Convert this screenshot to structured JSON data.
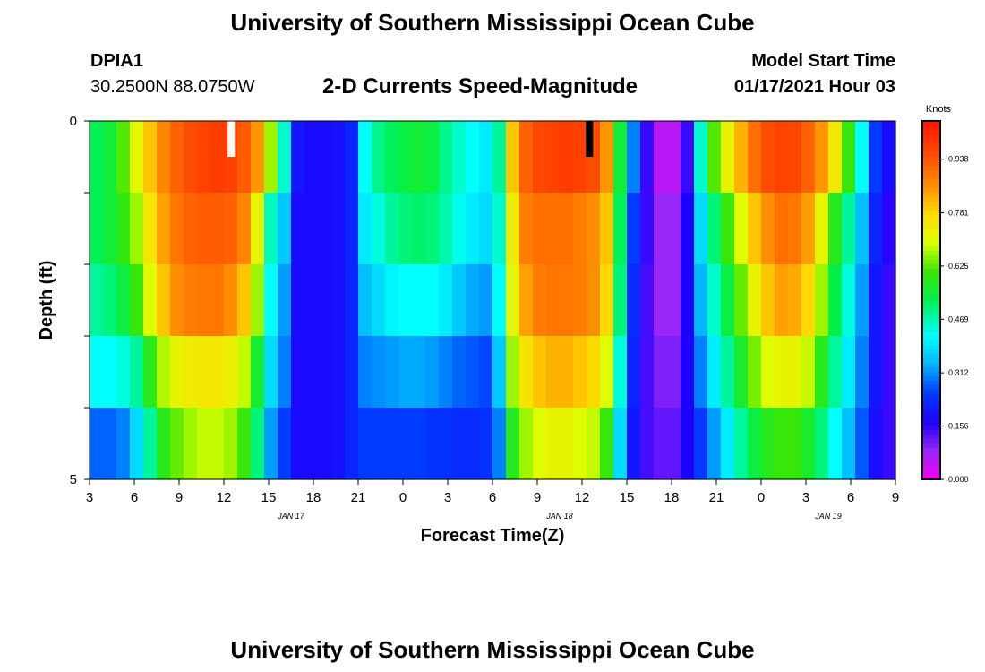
{
  "header": {
    "title_top": "University of Southern Mississippi Ocean Cube",
    "station": "DPIA1",
    "coords": "30.2500N 88.0750W",
    "product": "2-D Currents Speed-Magnitude",
    "start_label": "Model Start Time",
    "start_value": "01/17/2021 Hour 03",
    "title_bottom": "University of Southern Mississippi Ocean Cube"
  },
  "chart_data": {
    "type": "heatmap",
    "xlabel": "Forecast Time(Z)",
    "ylabel": "Depth (ft)",
    "x_tick_labels": [
      "3",
      "6",
      "9",
      "12",
      "15",
      "18",
      "21",
      "0",
      "3",
      "6",
      "9",
      "12",
      "15",
      "18",
      "21",
      "0",
      "3",
      "6",
      "9"
    ],
    "date_labels": [
      {
        "text": "JAN 17",
        "after_hour_index": 4
      },
      {
        "text": "JAN 18",
        "after_hour_index": 10
      },
      {
        "text": "JAN 19",
        "after_hour_index": 16
      }
    ],
    "x_range_hours": [
      0,
      54
    ],
    "y_tick_labels": [
      "0",
      "5"
    ],
    "y_range": [
      0,
      5
    ],
    "depth_rows": 5,
    "colorbar": {
      "label": "Knots",
      "ticks": [
        "0.000",
        "0.156",
        "0.312",
        "0.469",
        "0.625",
        "0.781",
        "0.938"
      ],
      "range": [
        0,
        1.05
      ]
    },
    "speed_rows": [
      [
        0.52,
        0.55,
        0.62,
        0.71,
        0.8,
        0.87,
        0.92,
        0.95,
        0.97,
        0.98,
        0.97,
        0.93,
        0.85,
        0.66,
        0.45,
        0.2,
        0.18,
        0.18,
        0.19,
        0.22,
        0.42,
        0.49,
        0.52,
        0.54,
        0.55,
        0.54,
        0.49,
        0.45,
        0.42,
        0.4,
        0.48,
        0.8,
        0.92,
        0.96,
        0.97,
        0.98,
        0.97,
        0.95,
        0.85,
        0.55,
        0.3,
        0.15,
        0.05,
        0.05,
        0.15,
        0.45,
        0.62,
        0.72,
        0.82,
        0.9,
        0.95,
        0.97,
        0.96,
        0.92,
        0.85,
        0.75,
        0.6,
        0.42,
        0.25,
        0.18
      ],
      [
        0.52,
        0.55,
        0.59,
        0.66,
        0.75,
        0.84,
        0.89,
        0.92,
        0.93,
        0.93,
        0.92,
        0.87,
        0.72,
        0.46,
        0.36,
        0.18,
        0.18,
        0.18,
        0.19,
        0.22,
        0.4,
        0.44,
        0.48,
        0.5,
        0.51,
        0.5,
        0.47,
        0.43,
        0.4,
        0.38,
        0.45,
        0.75,
        0.88,
        0.9,
        0.9,
        0.9,
        0.88,
        0.86,
        0.8,
        0.52,
        0.25,
        0.15,
        0.08,
        0.08,
        0.17,
        0.38,
        0.5,
        0.6,
        0.7,
        0.8,
        0.86,
        0.9,
        0.89,
        0.84,
        0.72,
        0.58,
        0.48,
        0.35,
        0.22,
        0.16
      ],
      [
        0.48,
        0.5,
        0.54,
        0.6,
        0.7,
        0.8,
        0.86,
        0.88,
        0.89,
        0.89,
        0.86,
        0.8,
        0.66,
        0.42,
        0.32,
        0.18,
        0.18,
        0.18,
        0.19,
        0.22,
        0.35,
        0.38,
        0.41,
        0.42,
        0.42,
        0.42,
        0.4,
        0.36,
        0.33,
        0.32,
        0.42,
        0.72,
        0.84,
        0.88,
        0.89,
        0.89,
        0.88,
        0.86,
        0.78,
        0.5,
        0.23,
        0.14,
        0.08,
        0.08,
        0.17,
        0.34,
        0.45,
        0.54,
        0.63,
        0.72,
        0.8,
        0.84,
        0.83,
        0.78,
        0.66,
        0.53,
        0.44,
        0.32,
        0.2,
        0.15
      ],
      [
        0.42,
        0.42,
        0.44,
        0.48,
        0.58,
        0.67,
        0.72,
        0.74,
        0.75,
        0.75,
        0.73,
        0.68,
        0.56,
        0.38,
        0.3,
        0.18,
        0.18,
        0.18,
        0.19,
        0.22,
        0.3,
        0.31,
        0.32,
        0.33,
        0.33,
        0.32,
        0.3,
        0.28,
        0.27,
        0.26,
        0.36,
        0.66,
        0.76,
        0.8,
        0.82,
        0.82,
        0.8,
        0.78,
        0.7,
        0.44,
        0.22,
        0.14,
        0.1,
        0.1,
        0.17,
        0.3,
        0.4,
        0.48,
        0.56,
        0.64,
        0.7,
        0.72,
        0.72,
        0.68,
        0.58,
        0.48,
        0.4,
        0.3,
        0.2,
        0.15
      ],
      [
        0.28,
        0.28,
        0.3,
        0.38,
        0.48,
        0.58,
        0.63,
        0.66,
        0.68,
        0.68,
        0.66,
        0.6,
        0.5,
        0.32,
        0.25,
        0.18,
        0.18,
        0.18,
        0.19,
        0.22,
        0.25,
        0.25,
        0.25,
        0.25,
        0.25,
        0.24,
        0.24,
        0.23,
        0.23,
        0.24,
        0.3,
        0.58,
        0.66,
        0.7,
        0.72,
        0.72,
        0.7,
        0.68,
        0.6,
        0.38,
        0.2,
        0.14,
        0.12,
        0.12,
        0.17,
        0.25,
        0.32,
        0.4,
        0.48,
        0.54,
        0.58,
        0.6,
        0.6,
        0.56,
        0.5,
        0.42,
        0.35,
        0.27,
        0.19,
        0.15
      ]
    ],
    "markers": [
      {
        "label": "white-bar",
        "hour": 9.5,
        "color": "#ffffff"
      },
      {
        "label": "black-bar",
        "hour": 33.5,
        "color": "#000000"
      }
    ],
    "colors": {
      "frame": "#000000",
      "background": "#ffffff"
    }
  }
}
